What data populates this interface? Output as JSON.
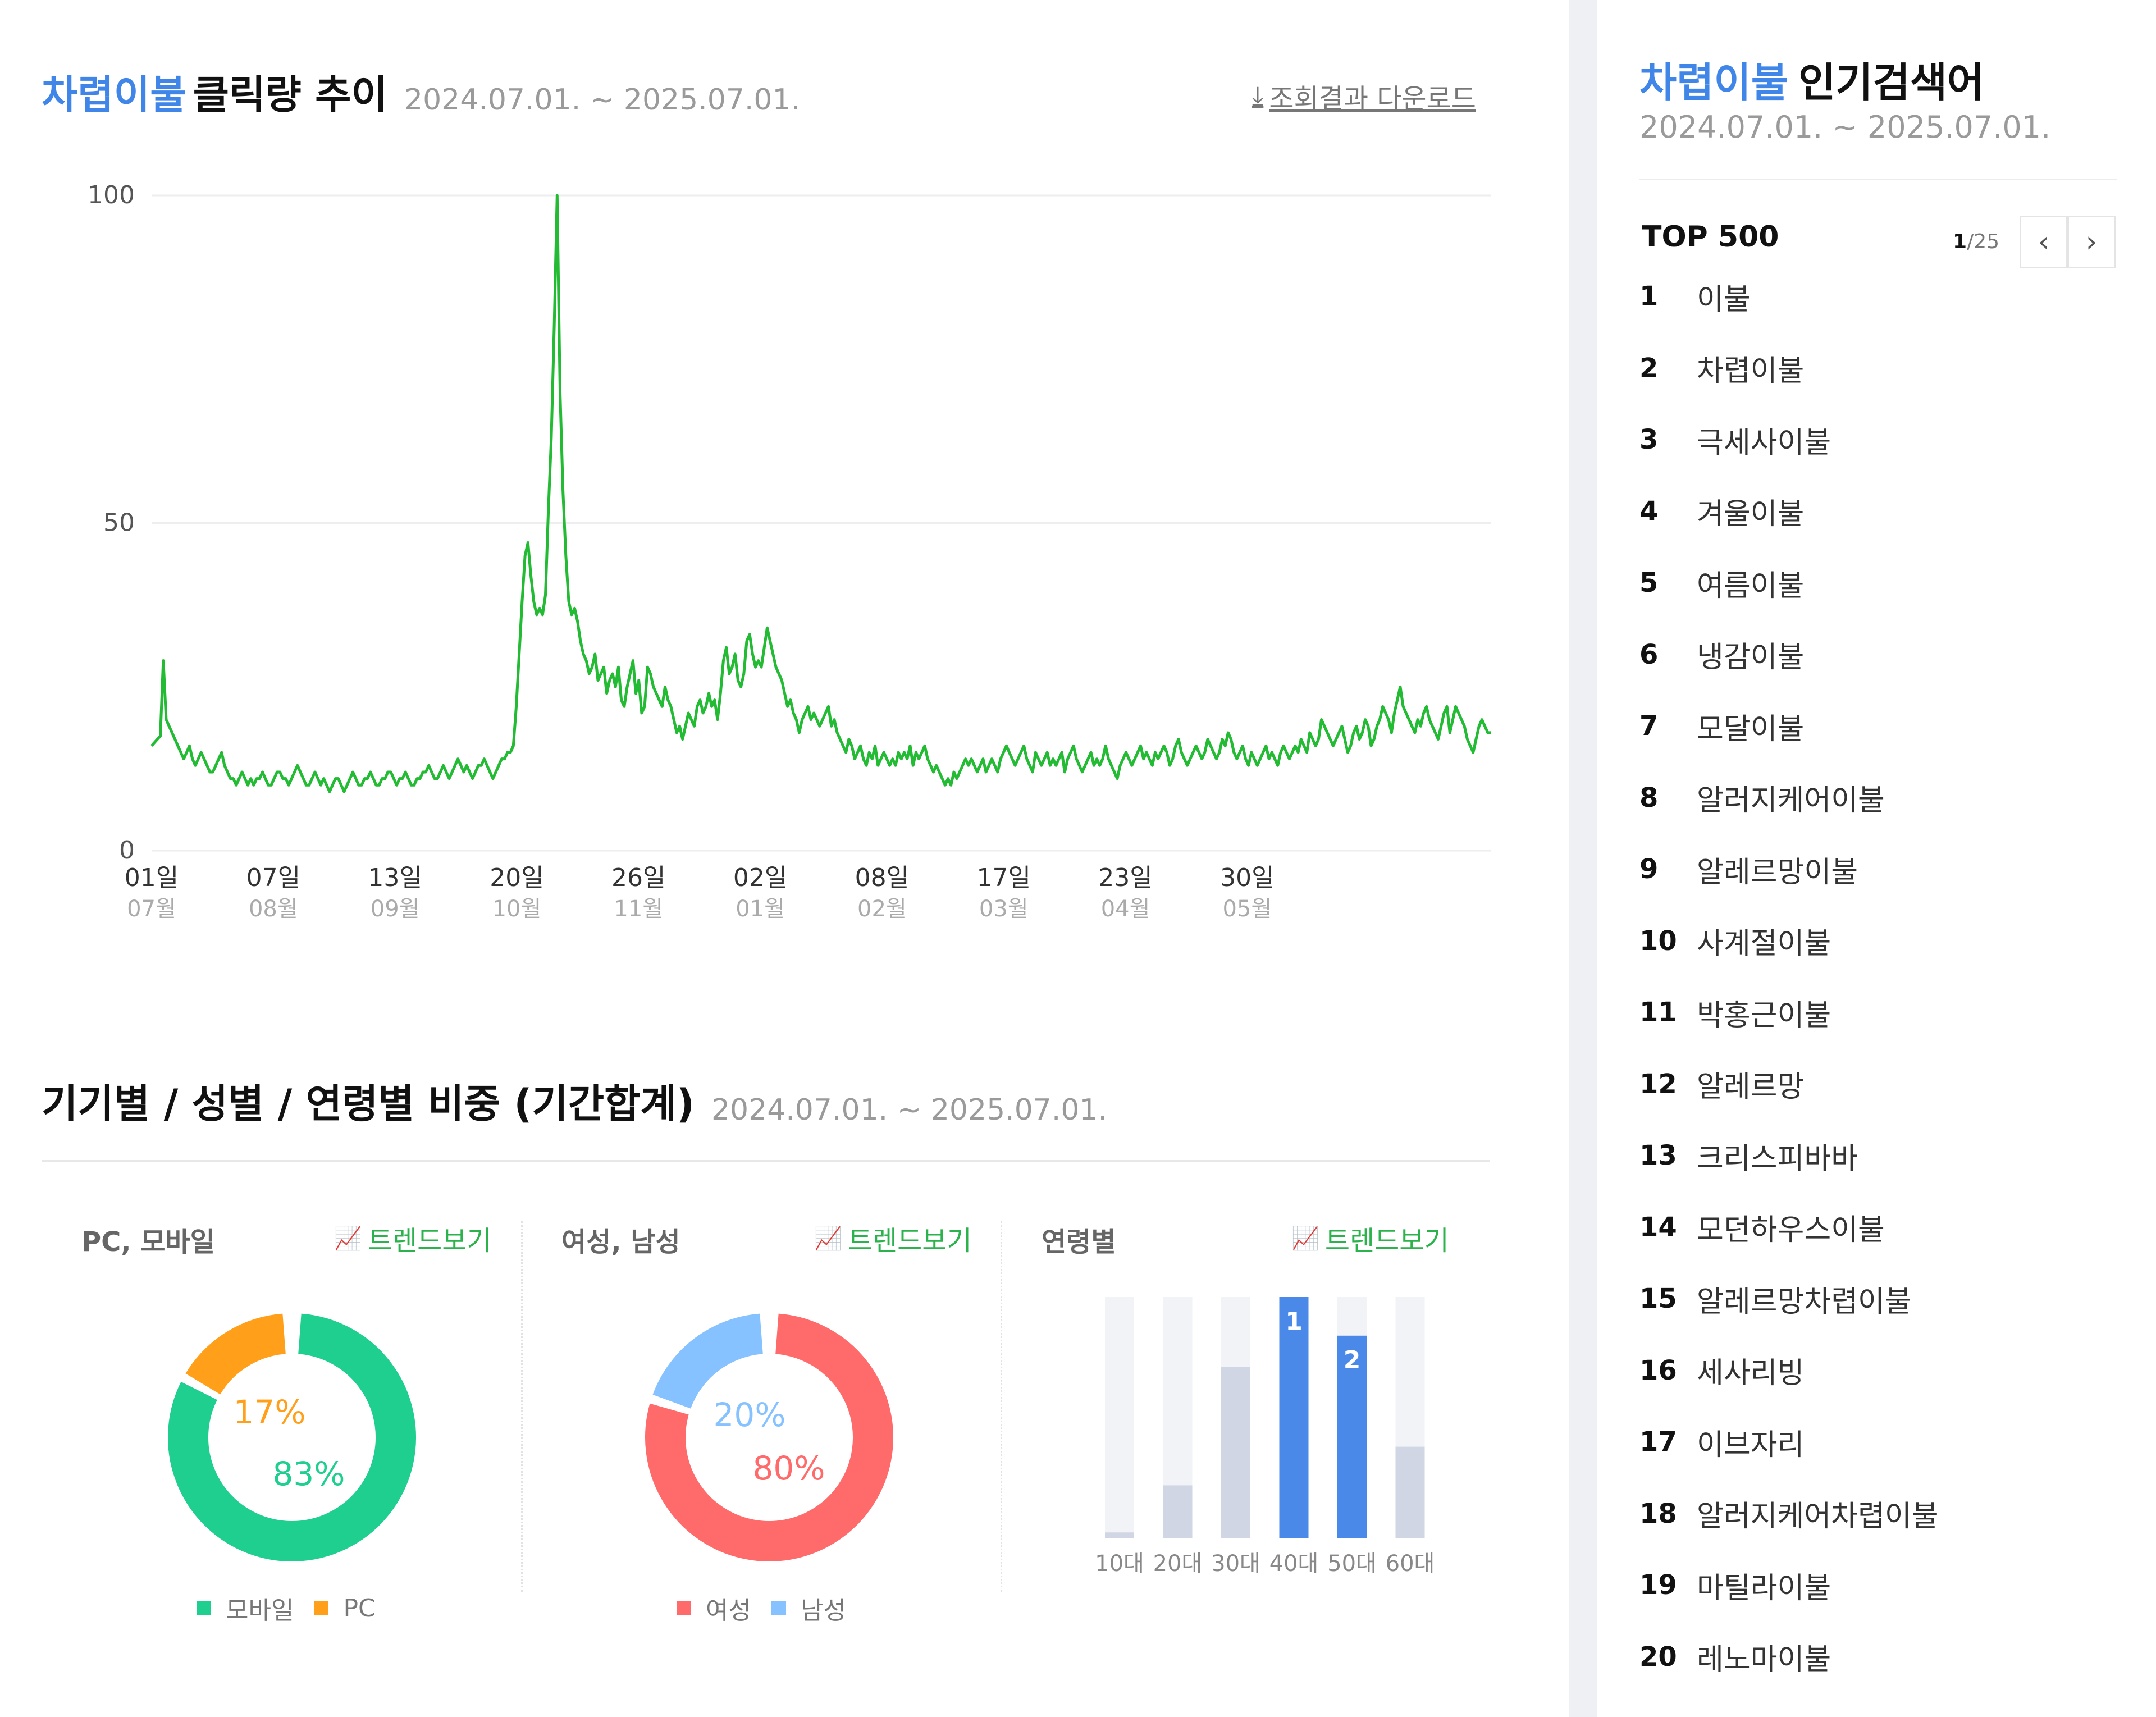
{
  "trend_section": {
    "keyword": "차렵이불",
    "title_rest": "클릭량 추이",
    "date_range": "2024.07.01. ~ 2025.07.01.",
    "download_label": "조회결과 다운로드",
    "download_icon": "download-arrow-icon"
  },
  "ratio_section": {
    "title": "기기별 / 성별 / 연령별 비중 (기간합계)",
    "date_range": "2024.07.01. ~ 2025.07.01.",
    "device_panel": {
      "label": "PC, 모바일",
      "trend_link": "트렌드보기"
    },
    "gender_panel": {
      "label": "여성, 남성",
      "trend_link": "트렌드보기"
    },
    "age_panel": {
      "label": "연령별",
      "trend_link": "트렌드보기"
    },
    "legend": {
      "mobile": "모바일",
      "pc": "PC",
      "female": "여성",
      "male": "남성"
    }
  },
  "colors": {
    "keyword_blue": "#3f86e8",
    "line_green": "#22bb33",
    "mobile": "#1fcf8f",
    "pc": "#ff9f1a",
    "female": "#ff6b6b",
    "male": "#86c2ff",
    "age_top": "#4a89e8",
    "age_other": "#d0d6e4",
    "age_bg": "#f1f3f7"
  },
  "chart_data": [
    {
      "type": "line",
      "series": [
        {
          "values": [
            16,
            16.5,
            17,
            17.5,
            29,
            20,
            19,
            18,
            17,
            16,
            15,
            14,
            15,
            16,
            14,
            13,
            14,
            15,
            14,
            13,
            12,
            12,
            13,
            14,
            15,
            13,
            12,
            11,
            11,
            10,
            11,
            12,
            11,
            10,
            11,
            10,
            11,
            11,
            12,
            11,
            10,
            10,
            11,
            12,
            12,
            11,
            11,
            10,
            11,
            12,
            13,
            12,
            11,
            10,
            10,
            11,
            12,
            11,
            10,
            11,
            10,
            9,
            10,
            11,
            11,
            10,
            9,
            10,
            11,
            12,
            11,
            10,
            10,
            11,
            11,
            12,
            11,
            10,
            10,
            11,
            11,
            12,
            12,
            11,
            10,
            11,
            11,
            12,
            11,
            10,
            10,
            11,
            11,
            12,
            12,
            13,
            12,
            11,
            11,
            12,
            13,
            12,
            11,
            12,
            13,
            14,
            13,
            12,
            13,
            12,
            11,
            12,
            13,
            13,
            14,
            13,
            12,
            11,
            12,
            13,
            14,
            14,
            15,
            15,
            16,
            22,
            30,
            38,
            45,
            47,
            42,
            38,
            36,
            37,
            36,
            39,
            52,
            63,
            80,
            100,
            70,
            55,
            45,
            38,
            36,
            37,
            35,
            32,
            30,
            29,
            27,
            28,
            30,
            26,
            27,
            28,
            24,
            26,
            27,
            25,
            28,
            23,
            22,
            25,
            27,
            29,
            24,
            26,
            21,
            22,
            28,
            27,
            25,
            24,
            23,
            22,
            25,
            23,
            22,
            20,
            18,
            19,
            17,
            19,
            21,
            20,
            19,
            22,
            23,
            21,
            22,
            24,
            22,
            23,
            20,
            24,
            29,
            31,
            27,
            28,
            30,
            26,
            25,
            27,
            32,
            33,
            30,
            28,
            29,
            28,
            31,
            34,
            32,
            30,
            28,
            27,
            26,
            24,
            22,
            23,
            21,
            20,
            18,
            20,
            21,
            22,
            20,
            21,
            20,
            19,
            20,
            21,
            22,
            19,
            20,
            18,
            17,
            16,
            15,
            17,
            16,
            14,
            15,
            16,
            14,
            13,
            15,
            14,
            16,
            13,
            14,
            15,
            14,
            13,
            14,
            13,
            15,
            14,
            15,
            14,
            16,
            13,
            15,
            14,
            15,
            16,
            14,
            13,
            12,
            13,
            12,
            11,
            10,
            11,
            10,
            12,
            11,
            12,
            13,
            14,
            13,
            14,
            13,
            12,
            13,
            14,
            12,
            13,
            14,
            13,
            12,
            14,
            15,
            16,
            15,
            14,
            13,
            14,
            15,
            16,
            14,
            13,
            12,
            15,
            14,
            13,
            14,
            15,
            13,
            14,
            13,
            14,
            15,
            12,
            14,
            15,
            16,
            14,
            13,
            12,
            13,
            14,
            15,
            13,
            14,
            13,
            14,
            16,
            14,
            13,
            12,
            11,
            13,
            14,
            15,
            14,
            13,
            14,
            15,
            16,
            14,
            15,
            14,
            13,
            15,
            14,
            15,
            16,
            15,
            13,
            14,
            16,
            17,
            15,
            14,
            13,
            14,
            15,
            16,
            15,
            14,
            15,
            17,
            16,
            15,
            14,
            15,
            17,
            16,
            18,
            17,
            15,
            14,
            15,
            16,
            14,
            13,
            15,
            14,
            13,
            14,
            15,
            16,
            14,
            15,
            14,
            13,
            15,
            16,
            15,
            14,
            15,
            16,
            15,
            17,
            16,
            15,
            18,
            17,
            16,
            17,
            20,
            19,
            18,
            17,
            16,
            17,
            18,
            19,
            17,
            15,
            16,
            18,
            19,
            17,
            18,
            20,
            19,
            16,
            17,
            19,
            20,
            22,
            21,
            20,
            18,
            21,
            23,
            25,
            22,
            21,
            20,
            19,
            18,
            20,
            19,
            21,
            22,
            20,
            19,
            18,
            17,
            19,
            21,
            22,
            18,
            20,
            22,
            21,
            20,
            19,
            17,
            16,
            15,
            17,
            19,
            20,
            19,
            18,
            18
          ],
          "color": "#22bb33"
        }
      ],
      "yticks": [
        0,
        50,
        100
      ],
      "ylim": [
        0,
        100
      ],
      "x_ticks": [
        {
          "day": "01일",
          "month": "07월"
        },
        {
          "day": "07일",
          "month": "08월"
        },
        {
          "day": "13일",
          "month": "09월"
        },
        {
          "day": "20일",
          "month": "10월"
        },
        {
          "day": "26일",
          "month": "11월"
        },
        {
          "day": "02일",
          "month": "01월"
        },
        {
          "day": "08일",
          "month": "02월"
        },
        {
          "day": "17일",
          "month": "03월"
        },
        {
          "day": "23일",
          "month": "04월"
        },
        {
          "day": "30일",
          "month": "05월"
        }
      ],
      "grid": true
    },
    {
      "type": "pie",
      "categories": [
        "모바일",
        "PC"
      ],
      "values": [
        83,
        17
      ],
      "labels": [
        "83%",
        "17%"
      ]
    },
    {
      "type": "pie",
      "categories": [
        "여성",
        "남성"
      ],
      "values": [
        80,
        20
      ],
      "labels": [
        "80%",
        "20%"
      ]
    },
    {
      "type": "bar",
      "categories": [
        "10대",
        "20대",
        "30대",
        "40대",
        "50대",
        "60대"
      ],
      "values": [
        2.5,
        22,
        71,
        100,
        84,
        38
      ],
      "rank_labels": [
        "",
        "",
        "",
        "1",
        "2",
        ""
      ],
      "ylim": [
        0,
        100
      ]
    }
  ],
  "popular_panel": {
    "keyword": "차렵이불",
    "title_rest": "인기검색어",
    "date_range": "2024.07.01. ~ 2025.07.01.",
    "top_label": "TOP 500",
    "page_current": "1",
    "page_total": "/25",
    "prev_icon": "chevron-left-icon",
    "next_icon": "chevron-right-icon",
    "items": [
      {
        "rank": "1",
        "keyword": "이불"
      },
      {
        "rank": "2",
        "keyword": "차렵이불"
      },
      {
        "rank": "3",
        "keyword": "극세사이불"
      },
      {
        "rank": "4",
        "keyword": "겨울이불"
      },
      {
        "rank": "5",
        "keyword": "여름이불"
      },
      {
        "rank": "6",
        "keyword": "냉감이불"
      },
      {
        "rank": "7",
        "keyword": "모달이불"
      },
      {
        "rank": "8",
        "keyword": "알러지케어이불"
      },
      {
        "rank": "9",
        "keyword": "알레르망이불"
      },
      {
        "rank": "10",
        "keyword": "사계절이불"
      },
      {
        "rank": "11",
        "keyword": "박홍근이불"
      },
      {
        "rank": "12",
        "keyword": "알레르망"
      },
      {
        "rank": "13",
        "keyword": "크리스피바바"
      },
      {
        "rank": "14",
        "keyword": "모던하우스이불"
      },
      {
        "rank": "15",
        "keyword": "알레르망차렵이불"
      },
      {
        "rank": "16",
        "keyword": "세사리빙"
      },
      {
        "rank": "17",
        "keyword": "이브자리"
      },
      {
        "rank": "18",
        "keyword": "알러지케어차렵이불"
      },
      {
        "rank": "19",
        "keyword": "마틸라이불"
      },
      {
        "rank": "20",
        "keyword": "레노마이불"
      }
    ]
  }
}
